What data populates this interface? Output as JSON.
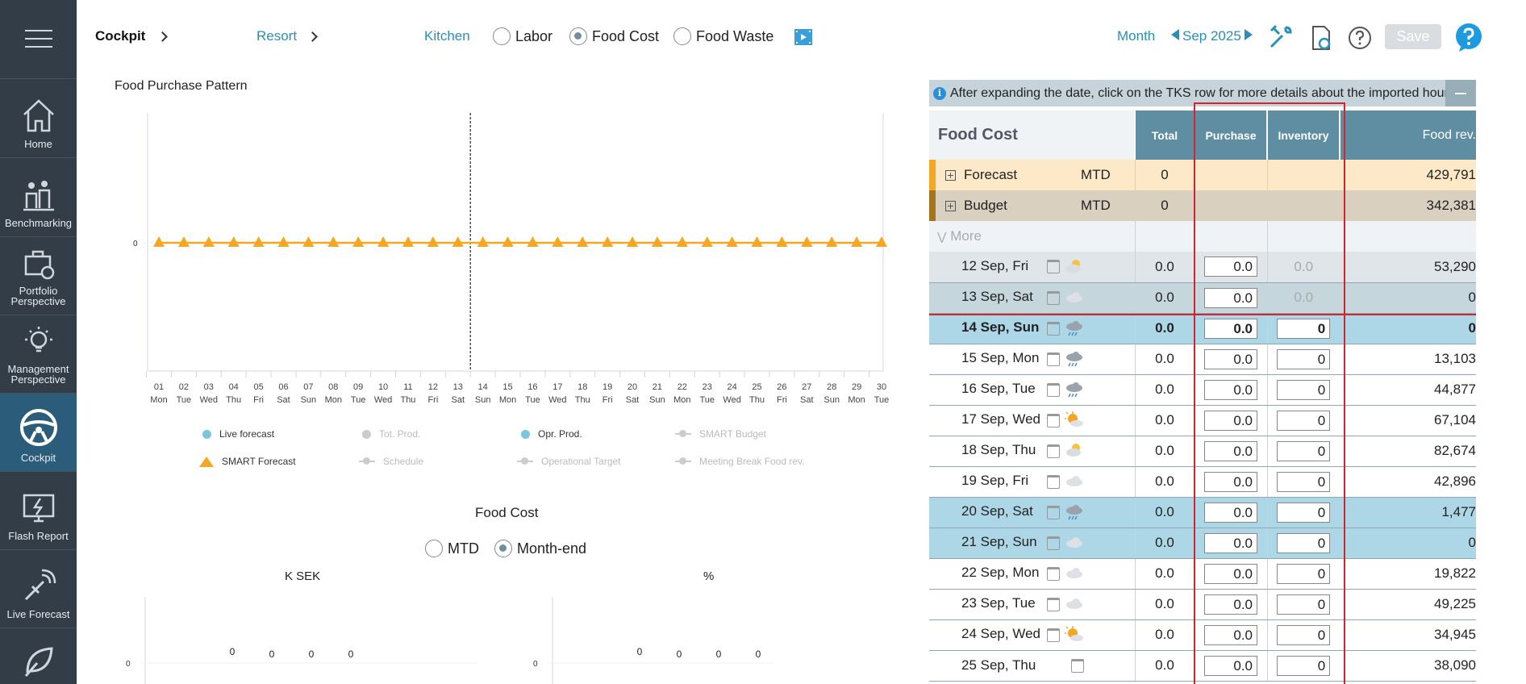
{
  "sidebar": {
    "items": [
      {
        "label": "Home",
        "icon": "home-icon"
      },
      {
        "label": "Benchmarking",
        "icon": "benchmarking-icon"
      },
      {
        "label": "Portfolio Perspective",
        "icon": "portfolio-icon"
      },
      {
        "label": "Management Perspective",
        "icon": "lightbulb-icon"
      },
      {
        "label": "Cockpit",
        "icon": "steering-wheel-icon"
      },
      {
        "label": "Flash Report",
        "icon": "flash-report-icon"
      },
      {
        "label": "Live Forecast",
        "icon": "satellite-icon"
      }
    ]
  },
  "topbar": {
    "cockpit": "Cockpit",
    "resort": "Resort",
    "kitchen": "Kitchen",
    "options": [
      {
        "label": "Labor",
        "selected": false
      },
      {
        "label": "Food Cost",
        "selected": true
      },
      {
        "label": "Food Waste",
        "selected": false
      }
    ],
    "period": "Month",
    "month": "Sep 2025",
    "save": "Save",
    "colors": {
      "accent": "#2a8fb8",
      "sidebar": "#333d47",
      "header": "#5f8ea3"
    }
  },
  "chart": {
    "title": "Food Purchase Pattern",
    "chart_data": {
      "type": "line",
      "title": "Food Purchase Pattern",
      "ytick": "0",
      "days": [
        "01",
        "02",
        "03",
        "04",
        "05",
        "06",
        "07",
        "08",
        "09",
        "10",
        "11",
        "12",
        "13",
        "14",
        "15",
        "16",
        "17",
        "18",
        "19",
        "20",
        "21",
        "22",
        "23",
        "24",
        "25",
        "26",
        "27",
        "28",
        "29",
        "30"
      ],
      "weekdays": [
        "Mon",
        "Tue",
        "Wed",
        "Thu",
        "Fri",
        "Sat",
        "Sun",
        "Mon",
        "Tue",
        "Wed",
        "Thu",
        "Fri",
        "Sat",
        "Sun",
        "Mon",
        "Tue",
        "Wed",
        "Thu",
        "Fri",
        "Sat",
        "Sun",
        "Mon",
        "Tue",
        "Wed",
        "Thu",
        "Fri",
        "Sat",
        "Sun",
        "Mon",
        "Tue"
      ],
      "today_marker": "13",
      "series": [
        {
          "name": "SMART Forecast",
          "color": "#f5a623",
          "values": [
            0,
            0,
            0,
            0,
            0,
            0,
            0,
            0,
            0,
            0,
            0,
            0,
            0,
            0,
            0,
            0,
            0,
            0,
            0,
            0,
            0,
            0,
            0,
            0,
            0,
            0,
            0,
            0,
            0,
            0
          ]
        }
      ],
      "legend": [
        {
          "label": "Live forecast",
          "style": "dot",
          "color": "#7ac6dc",
          "active": true
        },
        {
          "label": "Tot. Prod.",
          "style": "dot",
          "color": "#ccc",
          "active": false
        },
        {
          "label": "Opr. Prod.",
          "style": "dot",
          "color": "#7ac6dc",
          "active": true
        },
        {
          "label": "SMART Budget",
          "style": "line",
          "color": "#ccc",
          "active": false
        },
        {
          "label": "SMART Forecast",
          "style": "triangle",
          "color": "#f5a623",
          "active": true
        },
        {
          "label": "Schedule",
          "style": "line",
          "color": "#ccc",
          "active": false
        },
        {
          "label": "Operational Target",
          "style": "line",
          "color": "#ccc",
          "active": false
        },
        {
          "label": "Meeting Break Food rev.",
          "style": "line",
          "color": "#ccc",
          "active": false
        }
      ]
    }
  },
  "food_cost": {
    "title": "Food Cost",
    "mtd": "MTD",
    "month_end": "Month-end",
    "left_title": "K SEK",
    "right_title": "%",
    "ytick": "0",
    "left_values": [
      "0",
      "0",
      "0",
      "0"
    ],
    "right_values": [
      "0",
      "0",
      "0",
      "0"
    ]
  },
  "table": {
    "info": "After expanding the date, click on the TKS row for more details about the imported hours",
    "headers": {
      "title": "Food Cost",
      "total": "Total",
      "purchase": "Purchase",
      "inventory": "Inventory",
      "rev": "Food rev."
    },
    "forecast": {
      "label": "Forecast",
      "period": "MTD",
      "total": "0",
      "rev": "429,791"
    },
    "budget": {
      "label": "Budget",
      "period": "MTD",
      "total": "0",
      "rev": "342,381"
    },
    "more": "More",
    "rows": [
      {
        "date": "12 Sep, Fri",
        "weather": "partly-cloudy-icon",
        "total": "0.0",
        "purchase": "0.0",
        "inventory": "0.0",
        "rev": "53,290",
        "style": "grey",
        "inv_input": false
      },
      {
        "date": "13 Sep, Sat",
        "weather": "cloud-icon",
        "total": "0.0",
        "purchase": "0.0",
        "inventory": "0.0",
        "rev": "0",
        "style": "wk-grey",
        "inv_input": false
      },
      {
        "date": "14 Sep, Sun",
        "weather": "rain-icon",
        "total": "0.0",
        "purchase": "0.0",
        "inventory": "0",
        "rev": "0",
        "style": "today",
        "inv_input": true
      },
      {
        "date": "15 Sep, Mon",
        "weather": "rain-icon",
        "total": "0.0",
        "purchase": "0.0",
        "inventory": "0",
        "rev": "13,103",
        "style": "",
        "inv_input": true
      },
      {
        "date": "16 Sep, Tue",
        "weather": "rain-icon",
        "total": "0.0",
        "purchase": "0.0",
        "inventory": "0",
        "rev": "44,877",
        "style": "",
        "inv_input": true
      },
      {
        "date": "17 Sep, Wed",
        "weather": "sun-cloud-icon",
        "total": "0.0",
        "purchase": "0.0",
        "inventory": "0",
        "rev": "67,104",
        "style": "",
        "inv_input": true
      },
      {
        "date": "18 Sep, Thu",
        "weather": "partly-cloudy-icon",
        "total": "0.0",
        "purchase": "0.0",
        "inventory": "0",
        "rev": "82,674",
        "style": "",
        "inv_input": true
      },
      {
        "date": "19 Sep, Fri",
        "weather": "cloud-icon",
        "total": "0.0",
        "purchase": "0.0",
        "inventory": "0",
        "rev": "42,896",
        "style": "",
        "inv_input": true
      },
      {
        "date": "20 Sep, Sat",
        "weather": "rain-icon",
        "total": "0.0",
        "purchase": "0.0",
        "inventory": "0",
        "rev": "1,477",
        "style": "wk",
        "inv_input": true
      },
      {
        "date": "21 Sep, Sun",
        "weather": "cloud-icon",
        "total": "0.0",
        "purchase": "0.0",
        "inventory": "0",
        "rev": "0",
        "style": "wk",
        "inv_input": true
      },
      {
        "date": "22 Sep, Mon",
        "weather": "cloud-icon",
        "total": "0.0",
        "purchase": "0.0",
        "inventory": "0",
        "rev": "19,822",
        "style": "",
        "inv_input": true
      },
      {
        "date": "23 Sep, Tue",
        "weather": "cloud-icon",
        "total": "0.0",
        "purchase": "0.0",
        "inventory": "0",
        "rev": "49,225",
        "style": "",
        "inv_input": true
      },
      {
        "date": "24 Sep, Wed",
        "weather": "sun-cloud-icon",
        "total": "0.0",
        "purchase": "0.0",
        "inventory": "0",
        "rev": "34,945",
        "style": "",
        "inv_input": true
      },
      {
        "date": "25 Sep, Thu",
        "weather": "none",
        "total": "0.0",
        "purchase": "0.0",
        "inventory": "0",
        "rev": "38,090",
        "style": "",
        "inv_input": true
      }
    ]
  }
}
